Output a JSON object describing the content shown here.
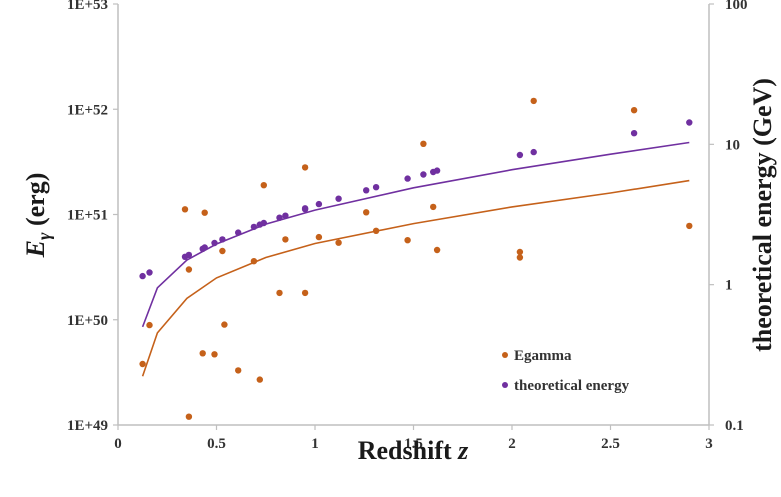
{
  "chart_data": {
    "type": "scatter",
    "title": "",
    "xlabel": {
      "text": "Redshift ",
      "var": "z"
    },
    "ylabel_left": {
      "var": "E",
      "sub": "γ",
      "unit": " (erg)"
    },
    "ylabel_right": "theoretical energy (GeV)",
    "xlim": [
      0,
      3
    ],
    "ylim_left": [
      1e+49,
      1e+53
    ],
    "ylim_right": [
      0.1,
      100
    ],
    "y_scale": "log",
    "grid": false,
    "legend_position": "bottom-right",
    "x_ticks": [
      "0",
      "0.5",
      "1",
      "1.5",
      "2",
      "2.5",
      "3"
    ],
    "y_left_ticks": [
      "1E+49",
      "1E+50",
      "1E+51",
      "1E+52",
      "1E+53"
    ],
    "y_right_ticks": [
      "0.1",
      "1",
      "10",
      "100"
    ],
    "colors": {
      "egamma": "#c5611a",
      "theoretical": "#7030a0",
      "axis": "#bfbfbf"
    },
    "series": [
      {
        "name": "Egamma",
        "axis": "left",
        "points": [
          [
            0.125,
            3.8e+49
          ],
          [
            0.16,
            8.9e+49
          ],
          [
            0.34,
            1.12e+51
          ],
          [
            0.36,
            3e+50
          ],
          [
            0.36,
            1.2e+49
          ],
          [
            0.43,
            4.8e+49
          ],
          [
            0.44,
            1.04e+51
          ],
          [
            0.49,
            4.7e+49
          ],
          [
            0.53,
            4.5e+50
          ],
          [
            0.54,
            9e+49
          ],
          [
            0.61,
            3.3e+49
          ],
          [
            0.69,
            3.6e+50
          ],
          [
            0.72,
            2.7e+49
          ],
          [
            0.74,
            1.9e+51
          ],
          [
            0.82,
            1.8e+50
          ],
          [
            0.85,
            5.8e+50
          ],
          [
            0.95,
            2.8e+51
          ],
          [
            0.95,
            1.8e+50
          ],
          [
            1.02,
            6.1e+50
          ],
          [
            1.12,
            5.4e+50
          ],
          [
            1.26,
            1.05e+51
          ],
          [
            1.31,
            7e+50
          ],
          [
            1.47,
            5.7e+50
          ],
          [
            1.55,
            4.7e+51
          ],
          [
            1.6,
            1.18e+51
          ],
          [
            1.62,
            4.6e+50
          ],
          [
            2.04,
            4.4e+50
          ],
          [
            2.04,
            3.9e+50
          ],
          [
            2.11,
            1.2e+52
          ],
          [
            2.62,
            9.8e+51
          ],
          [
            2.9,
            7.8e+50
          ]
        ]
      },
      {
        "name": "theoretical energy",
        "axis": "right",
        "points": [
          [
            0.125,
            1.15
          ],
          [
            0.16,
            1.22
          ],
          [
            0.34,
            1.58
          ],
          [
            0.36,
            1.63
          ],
          [
            0.43,
            1.8
          ],
          [
            0.44,
            1.84
          ],
          [
            0.49,
            1.98
          ],
          [
            0.53,
            2.1
          ],
          [
            0.61,
            2.35
          ],
          [
            0.69,
            2.58
          ],
          [
            0.72,
            2.68
          ],
          [
            0.74,
            2.75
          ],
          [
            0.82,
            3.0
          ],
          [
            0.85,
            3.1
          ],
          [
            0.95,
            3.45
          ],
          [
            0.95,
            3.5
          ],
          [
            1.02,
            3.75
          ],
          [
            1.12,
            4.1
          ],
          [
            1.26,
            4.7
          ],
          [
            1.31,
            4.95
          ],
          [
            1.47,
            5.7
          ],
          [
            1.55,
            6.1
          ],
          [
            1.6,
            6.35
          ],
          [
            1.62,
            6.5
          ],
          [
            2.04,
            8.4
          ],
          [
            2.11,
            8.8
          ],
          [
            2.62,
            12.0
          ],
          [
            2.9,
            14.3
          ]
        ]
      }
    ],
    "trendlines": [
      {
        "series": "Egamma",
        "axis": "left",
        "x_range": [
          0.125,
          2.9
        ],
        "points": [
          [
            0.125,
            2.9e+49
          ],
          [
            0.2,
            7.5e+49
          ],
          [
            0.35,
            1.6e+50
          ],
          [
            0.5,
            2.5e+50
          ],
          [
            0.75,
            3.9e+50
          ],
          [
            1.0,
            5.3e+50
          ],
          [
            1.5,
            8.2e+50
          ],
          [
            2.0,
            1.18e+51
          ],
          [
            2.5,
            1.6e+51
          ],
          [
            2.9,
            2.1e+51
          ]
        ]
      },
      {
        "series": "theoretical energy",
        "axis": "right",
        "x_range": [
          0.125,
          2.9
        ],
        "points": [
          [
            0.125,
            0.5
          ],
          [
            0.2,
            0.95
          ],
          [
            0.35,
            1.5
          ],
          [
            0.5,
            1.95
          ],
          [
            0.75,
            2.7
          ],
          [
            1.0,
            3.4
          ],
          [
            1.5,
            4.9
          ],
          [
            2.0,
            6.6
          ],
          [
            2.5,
            8.5
          ],
          [
            2.9,
            10.3
          ]
        ]
      }
    ]
  },
  "legend": {
    "items": [
      {
        "label": "Egamma",
        "color": "#c5611a"
      },
      {
        "label": "theoretical energy",
        "color": "#7030a0"
      }
    ]
  }
}
